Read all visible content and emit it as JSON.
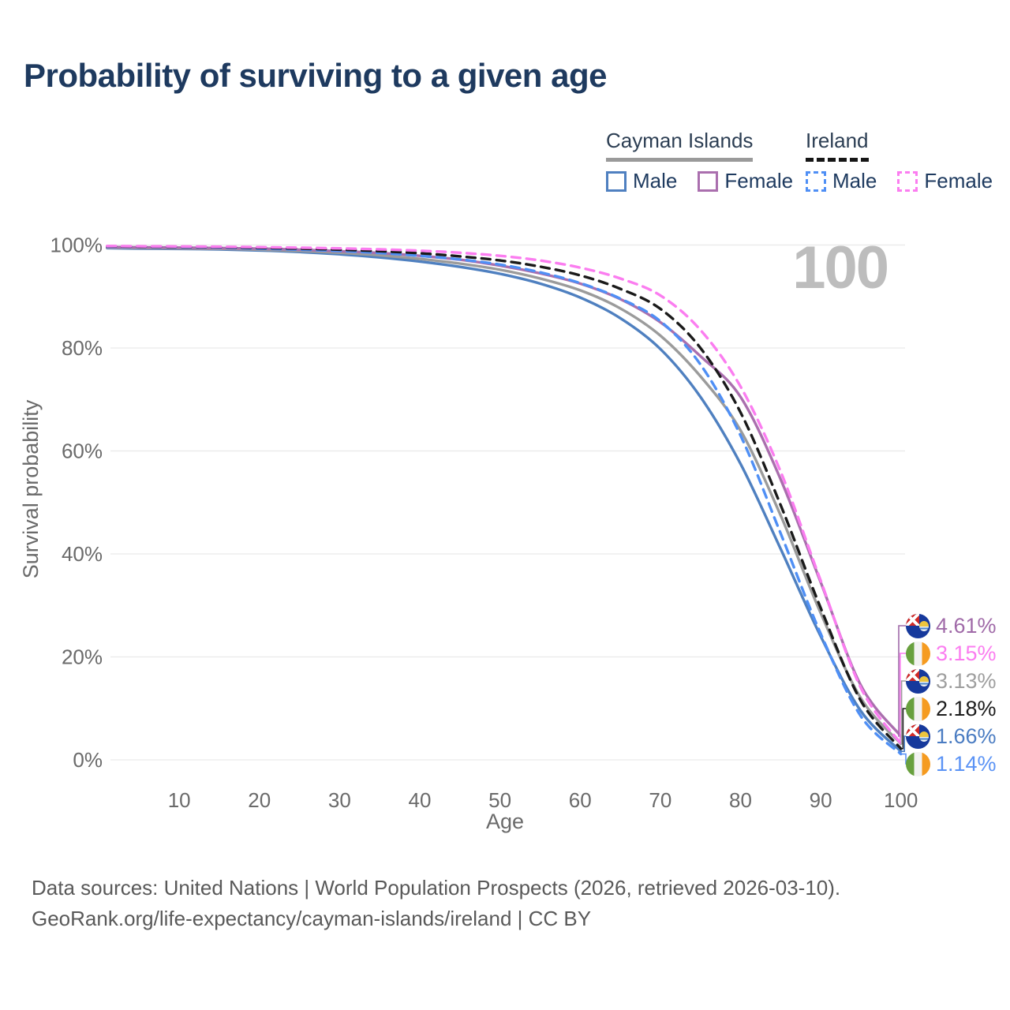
{
  "title": "Probability of surviving to a given age",
  "watermark_age": "100",
  "legend": {
    "groups": [
      {
        "label": "Cayman Islands",
        "line_style": "solid",
        "underline_color": "#9a9a9a",
        "items": [
          {
            "label": "Male",
            "color": "#4f80c0"
          },
          {
            "label": "Female",
            "color": "#aa6fae"
          }
        ]
      },
      {
        "label": "Ireland",
        "line_style": "dashed",
        "underline_color": "#161616",
        "items": [
          {
            "label": "Male",
            "color": "#4f8ff5"
          },
          {
            "label": "Female",
            "color": "#fb7df0"
          }
        ]
      }
    ]
  },
  "chart_data": {
    "type": "line",
    "title": "Probability of surviving to a given age",
    "xlabel": "Age",
    "ylabel": "Survival probability",
    "xlim": [
      1,
      100
    ],
    "ylim": [
      0,
      100
    ],
    "grid": "horizontal",
    "x_ticks": [
      {
        "v": 10,
        "label": "10"
      },
      {
        "v": 20,
        "label": "20"
      },
      {
        "v": 30,
        "label": "30"
      },
      {
        "v": 40,
        "label": "40"
      },
      {
        "v": 50,
        "label": "50"
      },
      {
        "v": 60,
        "label": "60"
      },
      {
        "v": 70,
        "label": "70"
      },
      {
        "v": 80,
        "label": "80"
      },
      {
        "v": 90,
        "label": "90"
      },
      {
        "v": 100,
        "label": "100"
      }
    ],
    "y_ticks": [
      {
        "v": 0,
        "label": "0%"
      },
      {
        "v": 20,
        "label": "20%"
      },
      {
        "v": 40,
        "label": "40%"
      },
      {
        "v": 60,
        "label": "60%"
      },
      {
        "v": 80,
        "label": "80%"
      },
      {
        "v": 100,
        "label": "100%"
      }
    ],
    "x": [
      1,
      5,
      10,
      15,
      20,
      25,
      30,
      35,
      40,
      45,
      50,
      55,
      60,
      65,
      70,
      75,
      80,
      85,
      90,
      95,
      100
    ],
    "series": [
      {
        "name": "Cayman Islands — Male",
        "country": "Cayman Islands",
        "sex": "Male",
        "color": "#4f80c0",
        "dash": "solid",
        "end_label": "1.66%",
        "values": [
          99.4,
          99.3,
          99.25,
          99.15,
          98.95,
          98.65,
          98.2,
          97.6,
          96.8,
          95.75,
          94.4,
          92.5,
          89.8,
          85.8,
          79.8,
          70.5,
          57.5,
          41.0,
          24.0,
          9.5,
          1.66
        ]
      },
      {
        "name": "Cayman Islands — All",
        "country": "Cayman Islands",
        "sex": "All",
        "color": "#9b9b9b",
        "dash": "solid",
        "end_label": "3.13%",
        "values": [
          99.5,
          99.42,
          99.36,
          99.27,
          99.1,
          98.85,
          98.5,
          98.0,
          97.3,
          96.4,
          95.2,
          93.5,
          91.2,
          87.7,
          82.4,
          74.5,
          64.0,
          47.5,
          28.5,
          12.0,
          3.13
        ]
      },
      {
        "name": "Cayman Islands — Female",
        "country": "Cayman Islands",
        "sex": "Female",
        "color": "#aa6fae",
        "dash": "solid",
        "end_label": "4.61%",
        "values": [
          99.6,
          99.55,
          99.5,
          99.42,
          99.3,
          99.1,
          98.8,
          98.45,
          97.9,
          97.15,
          96.0,
          94.5,
          92.5,
          89.5,
          85.0,
          78.4,
          70.5,
          54.5,
          34.5,
          14.5,
          4.61
        ]
      },
      {
        "name": "Ireland — Male",
        "country": "Ireland",
        "sex": "Male",
        "color": "#4f8ff5",
        "dash": "dashed",
        "end_label": "1.14%",
        "values": [
          99.7,
          99.65,
          99.6,
          99.5,
          99.3,
          99.1,
          98.85,
          98.45,
          97.9,
          97.2,
          96.2,
          94.7,
          92.6,
          89.6,
          85.2,
          76.8,
          63.0,
          44.0,
          24.5,
          8.5,
          1.14
        ]
      },
      {
        "name": "Ireland — All",
        "country": "Ireland",
        "sex": "All",
        "color": "#1a1a1a",
        "dash": "dashed",
        "end_label": "2.18%",
        "values": [
          99.75,
          99.7,
          99.66,
          99.58,
          99.45,
          99.3,
          99.1,
          98.8,
          98.4,
          97.8,
          97.0,
          95.8,
          94.1,
          91.5,
          87.6,
          80.0,
          67.5,
          49.5,
          29.5,
          11.5,
          2.18
        ]
      },
      {
        "name": "Ireland — Female",
        "country": "Ireland",
        "sex": "Female",
        "color": "#fb7df0",
        "dash": "dashed",
        "end_label": "3.15%",
        "values": [
          99.8,
          99.76,
          99.72,
          99.66,
          99.58,
          99.48,
          99.35,
          99.15,
          98.9,
          98.5,
          97.9,
          97.0,
          95.6,
          93.5,
          90.2,
          83.5,
          72.5,
          56.0,
          34.8,
          14.0,
          3.15
        ]
      }
    ]
  },
  "end_labels": [
    {
      "value": "4.61%",
      "flag": "cayman-islands",
      "color": "#a06aa8",
      "series": "Cayman Islands — Female"
    },
    {
      "value": "3.15%",
      "flag": "ireland",
      "color": "#fb7df0",
      "series": "Ireland — Female"
    },
    {
      "value": "3.13%",
      "flag": "cayman-islands",
      "color": "#9e9e9e",
      "series": "Cayman Islands — All"
    },
    {
      "value": "2.18%",
      "flag": "ireland",
      "color": "#1c1c1c",
      "series": "Ireland — All"
    },
    {
      "value": "1.66%",
      "flag": "cayman-islands",
      "color": "#4a7cc2",
      "series": "Cayman Islands — Male"
    },
    {
      "value": "1.14%",
      "flag": "ireland",
      "color": "#5b93f5",
      "series": "Ireland — Male"
    }
  ],
  "footer": {
    "line1": "Data sources: United Nations | World Population Prospects (2026, retrieved 2026-03-10).",
    "line2": "GeoRank.org/life-expectancy/cayman-islands/ireland | CC BY"
  }
}
